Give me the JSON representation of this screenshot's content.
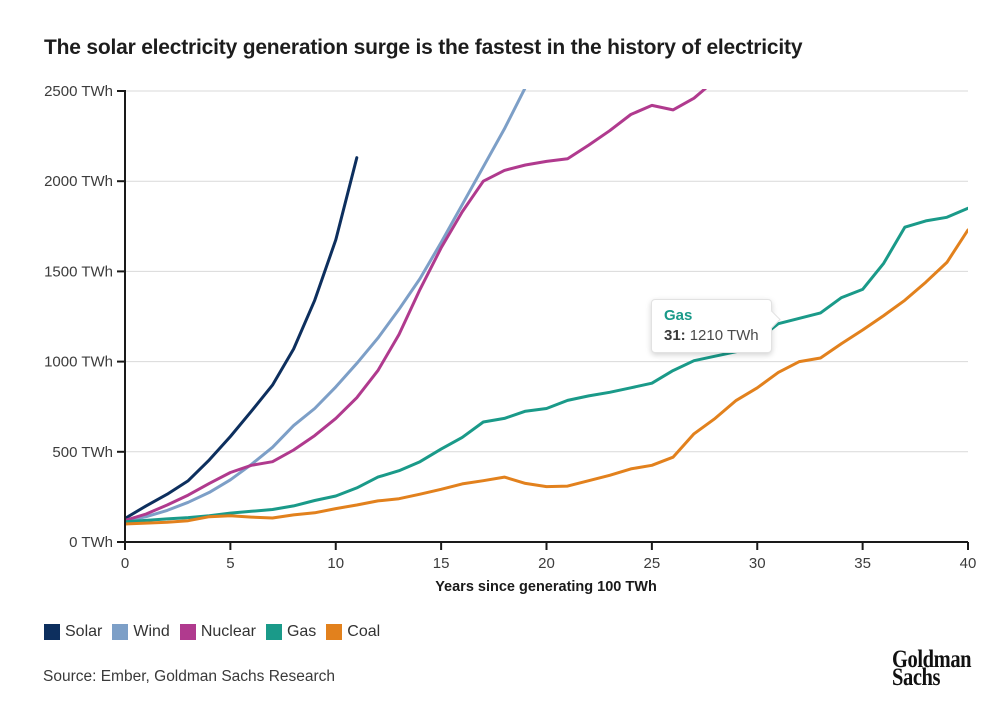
{
  "title": "The solar electricity generation surge is the fastest in the history of electricity",
  "source": "Source: Ember, Goldman Sachs Research",
  "logo": {
    "line1": "Goldman",
    "line2": "Sachs"
  },
  "colors": {
    "axis": "#1a1a1a",
    "grid": "#d9d9d9",
    "tick_text": "#3c3c3c",
    "title_text": "#1d1d1d"
  },
  "chart_data": {
    "type": "line",
    "title": "The solar electricity generation surge is the fastest in the history of electricity",
    "xlabel": "Years since generating 100 TWh",
    "ylabel": "TWh",
    "xlim": [
      0,
      40
    ],
    "ylim": [
      0,
      2500
    ],
    "grid": true,
    "legend_position": "bottom-left",
    "x_ticks": [
      {
        "value": 0,
        "label": "0"
      },
      {
        "value": 5,
        "label": "5"
      },
      {
        "value": 10,
        "label": "10"
      },
      {
        "value": 15,
        "label": "15"
      },
      {
        "value": 20,
        "label": "20"
      },
      {
        "value": 25,
        "label": "25"
      },
      {
        "value": 30,
        "label": "30"
      },
      {
        "value": 35,
        "label": "35"
      },
      {
        "value": 40,
        "label": "40"
      }
    ],
    "y_ticks": [
      {
        "value": 2500,
        "label": "2500 TWh"
      },
      {
        "value": 2000,
        "label": "2000 TWh"
      },
      {
        "value": 1500,
        "label": "1500 TWh"
      },
      {
        "value": 1000,
        "label": "1000 TWh"
      },
      {
        "value": 500,
        "label": "500 TWh"
      },
      {
        "value": 0,
        "label": "0 TWh"
      }
    ],
    "series": [
      {
        "name": "Solar",
        "color": "#0d2f5e",
        "x_start": 0,
        "x_step": 1,
        "values": [
          130,
          200,
          265,
          340,
          455,
          585,
          725,
          870,
          1070,
          1340,
          1675,
          2130
        ]
      },
      {
        "name": "Wind",
        "color": "#7d9fc7",
        "x_start": 0,
        "x_step": 1,
        "values": [
          115,
          140,
          175,
          220,
          275,
          345,
          430,
          525,
          645,
          740,
          860,
          990,
          1130,
          1290,
          1460,
          1660,
          1870,
          2080,
          2290,
          2520
        ]
      },
      {
        "name": "Nuclear",
        "color": "#b03a8e",
        "x_start": 0,
        "x_step": 1,
        "values": [
          120,
          155,
          205,
          260,
          325,
          385,
          425,
          445,
          510,
          590,
          685,
          800,
          950,
          1150,
          1400,
          1630,
          1830,
          2000,
          2060,
          2090,
          2110,
          2125,
          2200,
          2280,
          2370,
          2420,
          2395,
          2460,
          2560
        ]
      },
      {
        "name": "Gas",
        "color": "#1a9a89",
        "x_start": 0,
        "x_step": 1,
        "values": [
          112,
          120,
          128,
          135,
          145,
          160,
          170,
          180,
          200,
          230,
          255,
          300,
          360,
          395,
          445,
          515,
          580,
          665,
          685,
          725,
          740,
          785,
          810,
          830,
          855,
          880,
          950,
          1005,
          1030,
          1055,
          1120,
          1210,
          1240,
          1270,
          1355,
          1400,
          1545,
          1745,
          1780,
          1800,
          1850
        ]
      },
      {
        "name": "Coal",
        "color": "#e2811d",
        "x_start": 0,
        "x_step": 1,
        "values": [
          100,
          105,
          110,
          118,
          140,
          145,
          138,
          133,
          150,
          162,
          185,
          205,
          228,
          240,
          265,
          292,
          322,
          340,
          360,
          325,
          307,
          310,
          340,
          370,
          405,
          425,
          470,
          600,
          685,
          785,
          855,
          940,
          1000,
          1020,
          1100,
          1175,
          1255,
          1340,
          1440,
          1550,
          1730
        ]
      }
    ],
    "tooltip": {
      "series": "Gas",
      "x": 31,
      "x_label": "31:",
      "value": "1210 TWh",
      "color": "#1a9a89"
    }
  }
}
